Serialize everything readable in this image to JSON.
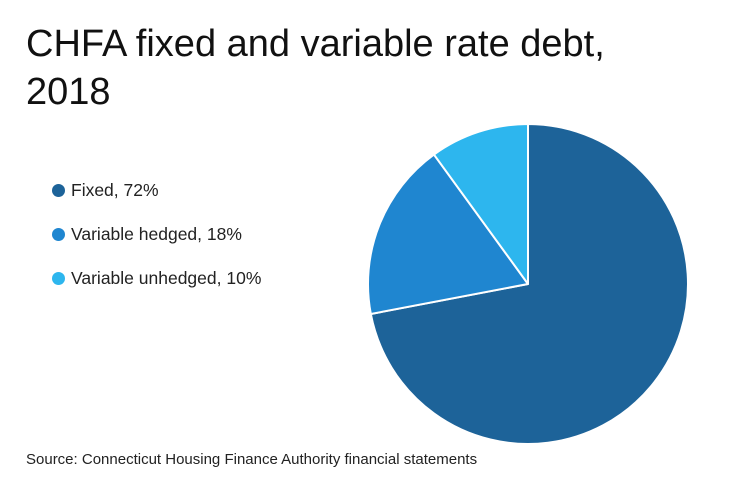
{
  "chart_data": {
    "type": "pie",
    "title": "CHFA fixed and variable rate debt, 2018",
    "slices": [
      {
        "label": "Fixed, 72%",
        "name": "Fixed",
        "value": 72,
        "color": "#1d6399"
      },
      {
        "label": "Variable hedged, 18%",
        "name": "Variable hedged",
        "value": 18,
        "color": "#1f86d0"
      },
      {
        "label": "Variable unhedged, 10%",
        "name": "Variable unhedged",
        "value": 10,
        "color": "#2db6ee"
      }
    ],
    "start_angle": "12 o'clock",
    "direction": "clockwise",
    "legend_position": "left",
    "source": "Source: Connecticut Housing Finance Authority financial statements"
  }
}
